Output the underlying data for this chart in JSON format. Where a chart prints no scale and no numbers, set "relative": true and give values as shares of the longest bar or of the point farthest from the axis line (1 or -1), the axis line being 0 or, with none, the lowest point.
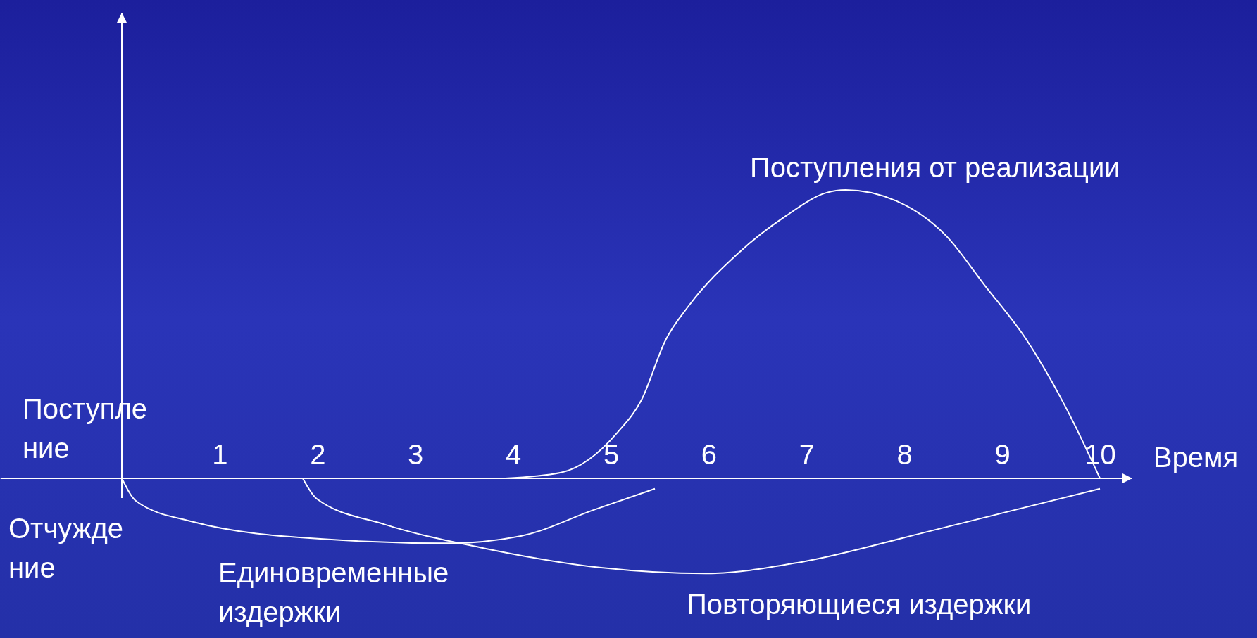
{
  "chart_data": {
    "type": "line",
    "relative": true,
    "xlabel": "Время",
    "xlim": [
      -1.24,
      10.33
    ],
    "xticks": [
      1,
      2,
      3,
      4,
      5,
      6,
      7,
      8,
      9,
      10
    ],
    "grid": false,
    "legend": false,
    "marker": "none",
    "line_style": "solid",
    "annotations": [
      "Поступле ние",
      "Отчужде ние"
    ],
    "series": [
      {
        "name": "Поступления от реализации",
        "color": "#ffffff",
        "x": [
          3.92,
          4.49,
          5.07,
          5.31,
          5.56,
          5.8,
          6.3,
          6.79,
          7.2,
          7.4,
          7.93,
          8.43,
          8.82,
          9.25,
          9.66,
          10
        ],
        "values": [
          0,
          0.02,
          0.16,
          0.27,
          0.48,
          0.6,
          0.78,
          0.91,
          0.99,
          1,
          0.96,
          0.84,
          0.67,
          0.48,
          0.24,
          0
        ]
      },
      {
        "name": "Единовременные издержки",
        "color": "#ffffff",
        "x": [
          0,
          0.15,
          0.72,
          2.03,
          3.34,
          4.08,
          4.82,
          5.45
        ],
        "values": [
          0,
          -0.08,
          -0.15,
          -0.21,
          -0.225,
          -0.2,
          -0.11,
          -0.036
        ]
      },
      {
        "name": "Повторяющиеся издержки",
        "color": "#ffffff",
        "x": [
          1.85,
          1.99,
          2.69,
          3.67,
          4.9,
          5.97,
          6.95,
          8.18,
          10
        ],
        "values": [
          0,
          -0.07,
          -0.16,
          -0.24,
          -0.31,
          -0.33,
          -0.29,
          -0.19,
          -0.036
        ]
      }
    ]
  }
}
